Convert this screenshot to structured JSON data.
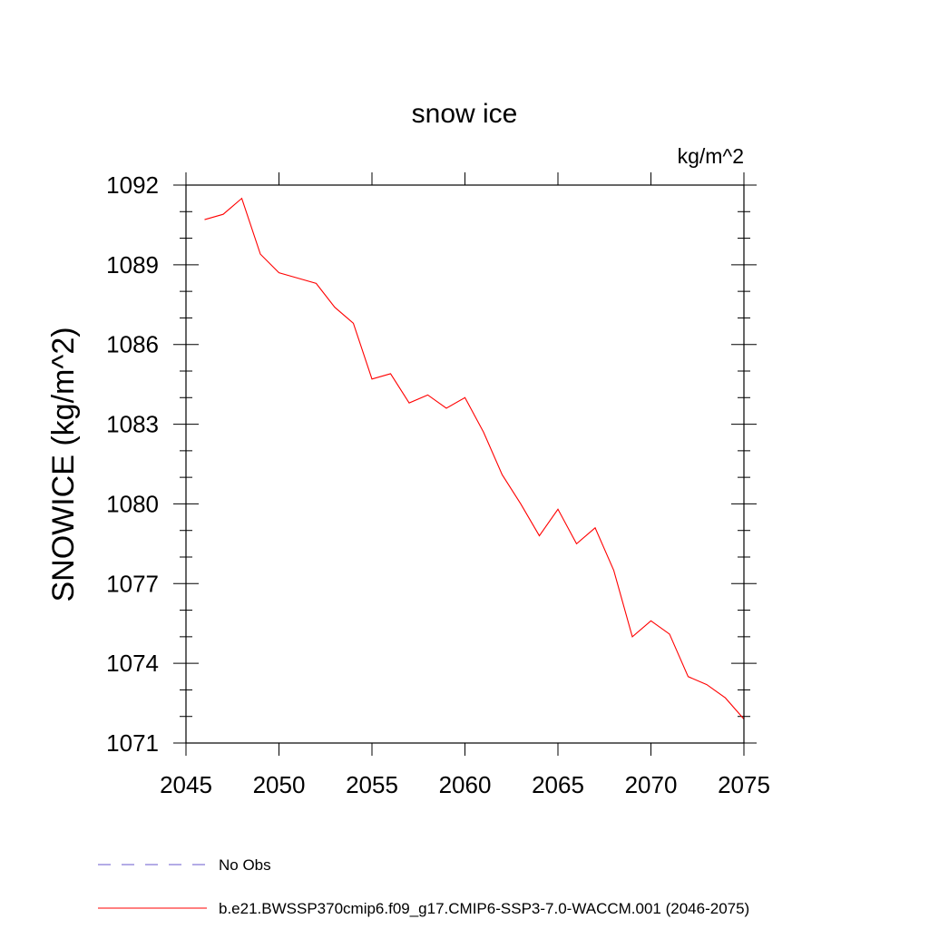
{
  "chart_data": {
    "type": "line",
    "title": "snow ice",
    "units": "kg/m^2",
    "ylabel": "SNOWICE  (kg/m^2)",
    "xlabel": "",
    "xlim": [
      2045,
      2075
    ],
    "ylim": [
      1071,
      1092
    ],
    "xticks": [
      2045,
      2050,
      2055,
      2060,
      2065,
      2070,
      2075
    ],
    "yticks": [
      1071,
      1074,
      1077,
      1080,
      1083,
      1086,
      1089,
      1092
    ],
    "series": [
      {
        "name": "b.e21.BWSSP370cmip6.f09_g17.CMIP6-SSP3-7.0-WACCM.001 (2046-2075)",
        "color": "#ff0000",
        "style": "solid",
        "x": [
          2046,
          2047,
          2048,
          2049,
          2050,
          2051,
          2052,
          2053,
          2054,
          2055,
          2056,
          2057,
          2058,
          2059,
          2060,
          2061,
          2062,
          2063,
          2064,
          2065,
          2066,
          2067,
          2068,
          2069,
          2070,
          2071,
          2072,
          2073,
          2074,
          2075
        ],
        "values": [
          1090.7,
          1090.9,
          1091.5,
          1089.4,
          1088.7,
          1088.5,
          1088.3,
          1087.4,
          1086.8,
          1084.7,
          1084.9,
          1083.8,
          1084.1,
          1083.6,
          1084.0,
          1082.7,
          1081.1,
          1080.0,
          1078.8,
          1079.8,
          1078.5,
          1079.1,
          1077.5,
          1075.0,
          1075.6,
          1075.1,
          1073.5,
          1073.2,
          1072.7,
          1071.9
        ]
      }
    ],
    "legend": [
      {
        "label": "No Obs",
        "color": "#6a5acd",
        "style": "dashed"
      },
      {
        "label": "b.e21.BWSSP370cmip6.f09_g17.CMIP6-SSP3-7.0-WACCM.001 (2046-2075)",
        "color": "#ff0000",
        "style": "solid"
      }
    ]
  }
}
